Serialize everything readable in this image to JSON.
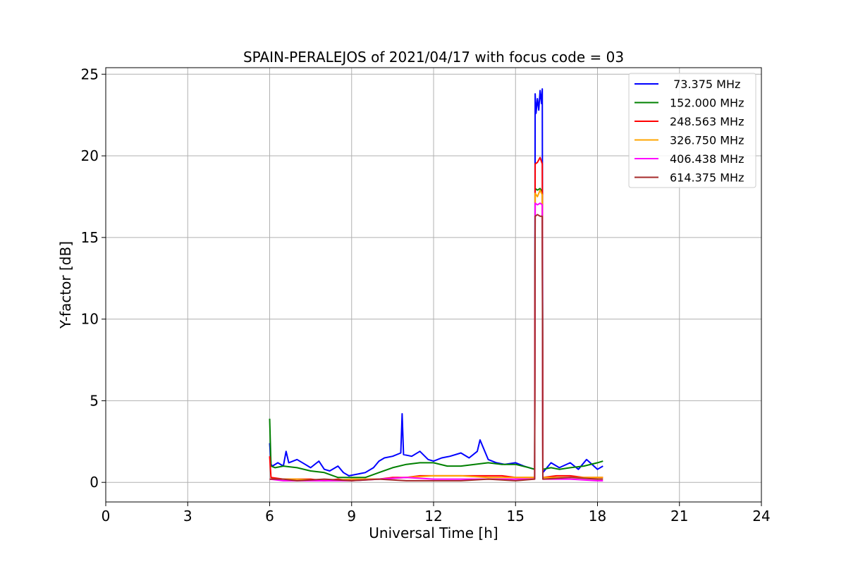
{
  "chart_data": {
    "type": "line",
    "title": "SPAIN-PERALEJOS of 2021/04/17 with focus code = 03",
    "xlabel": "Universal Time [h]",
    "ylabel": "Y-factor [dB]",
    "xlim": [
      0,
      24
    ],
    "ylim": [
      -1.2,
      25.4
    ],
    "xticks": [
      0,
      3,
      6,
      9,
      12,
      15,
      18,
      21,
      24
    ],
    "xtick_labels": [
      "0",
      "3",
      "6",
      "9",
      "12",
      "15",
      "18",
      "21",
      "24"
    ],
    "yticks": [
      0,
      5,
      10,
      15,
      20,
      25
    ],
    "ytick_labels": [
      "0",
      "5",
      "10",
      "15",
      "20",
      "25"
    ],
    "grid": true,
    "legend_position": "top-right",
    "series": [
      {
        "name": " 73.375 MHz",
        "color": "#0000ff",
        "x": [
          6.0,
          6.05,
          6.1,
          6.3,
          6.5,
          6.6,
          6.7,
          7.0,
          7.3,
          7.5,
          7.8,
          8.0,
          8.2,
          8.5,
          8.7,
          8.9,
          9.2,
          9.5,
          9.8,
          10.0,
          10.2,
          10.5,
          10.8,
          10.85,
          10.9,
          11.2,
          11.5,
          11.8,
          12.0,
          12.3,
          12.6,
          13.0,
          13.3,
          13.6,
          13.7,
          14.0,
          14.3,
          14.6,
          15.0,
          15.3,
          15.5,
          15.7,
          15.72,
          15.75,
          15.8,
          15.85,
          15.9,
          15.95,
          15.98,
          16.0,
          16.3,
          16.6,
          17.0,
          17.3,
          17.6,
          18.0,
          18.2
        ],
        "y": [
          2.4,
          1.1,
          1.0,
          1.2,
          1.0,
          1.9,
          1.2,
          1.4,
          1.1,
          0.9,
          1.3,
          0.8,
          0.7,
          1.0,
          0.6,
          0.4,
          0.5,
          0.6,
          0.9,
          1.3,
          1.5,
          1.6,
          1.8,
          4.2,
          1.7,
          1.6,
          1.9,
          1.4,
          1.3,
          1.5,
          1.6,
          1.8,
          1.5,
          1.9,
          2.6,
          1.4,
          1.2,
          1.1,
          1.2,
          1.0,
          0.9,
          0.8,
          23.8,
          22.6,
          23.5,
          22.8,
          24.0,
          23.2,
          24.1,
          0.6,
          1.2,
          0.9,
          1.2,
          0.8,
          1.4,
          0.8,
          1.0
        ]
      },
      {
        "name": "152.000 MHz",
        "color": "#008000",
        "x": [
          6.0,
          6.05,
          6.2,
          6.5,
          7.0,
          7.5,
          8.0,
          8.5,
          9.0,
          9.5,
          10.0,
          10.5,
          11.0,
          11.5,
          12.0,
          12.5,
          13.0,
          13.5,
          14.0,
          14.5,
          15.0,
          15.5,
          15.7,
          15.72,
          15.8,
          15.9,
          15.98,
          16.0,
          16.3,
          16.6,
          17.0,
          17.5,
          18.0,
          18.2
        ],
        "y": [
          3.9,
          1.0,
          0.9,
          1.0,
          0.9,
          0.7,
          0.6,
          0.3,
          0.3,
          0.3,
          0.6,
          0.9,
          1.1,
          1.2,
          1.2,
          1.0,
          1.0,
          1.1,
          1.2,
          1.1,
          1.1,
          0.9,
          0.8,
          18.0,
          17.9,
          18.0,
          17.8,
          0.8,
          0.9,
          0.8,
          0.9,
          1.0,
          1.2,
          1.3
        ]
      },
      {
        "name": "248.563 MHz",
        "color": "#ff0000",
        "x": [
          6.0,
          6.05,
          6.5,
          7.0,
          7.5,
          8.0,
          8.5,
          9.0,
          9.5,
          10.0,
          10.5,
          11.0,
          11.5,
          12.0,
          12.5,
          13.0,
          13.5,
          14.0,
          14.5,
          15.0,
          15.5,
          15.7,
          15.72,
          15.8,
          15.9,
          15.98,
          16.0,
          16.5,
          17.0,
          17.5,
          18.0,
          18.2
        ],
        "y": [
          1.6,
          0.3,
          0.2,
          0.2,
          0.2,
          0.1,
          0.2,
          0.1,
          0.2,
          0.2,
          0.3,
          0.3,
          0.4,
          0.4,
          0.4,
          0.4,
          0.4,
          0.4,
          0.4,
          0.3,
          0.3,
          0.3,
          19.5,
          19.6,
          19.9,
          19.5,
          0.3,
          0.4,
          0.4,
          0.3,
          0.3,
          0.3
        ]
      },
      {
        "name": "326.750 MHz",
        "color": "#ffa500",
        "x": [
          6.0,
          6.5,
          7.0,
          8.0,
          9.0,
          10.0,
          11.0,
          12.0,
          13.0,
          14.0,
          15.0,
          15.7,
          15.72,
          15.8,
          15.9,
          15.98,
          16.0,
          17.0,
          18.0,
          18.2
        ],
        "y": [
          0.2,
          0.2,
          0.2,
          0.1,
          0.2,
          0.2,
          0.3,
          0.4,
          0.4,
          0.3,
          0.3,
          0.3,
          17.7,
          17.5,
          17.9,
          17.6,
          0.3,
          0.3,
          0.3,
          0.3
        ]
      },
      {
        "name": "406.438 MHz",
        "color": "#ff00ff",
        "x": [
          6.0,
          6.5,
          7.0,
          8.0,
          9.0,
          10.0,
          11.0,
          12.0,
          13.0,
          14.0,
          15.0,
          15.7,
          15.72,
          15.8,
          15.9,
          15.98,
          16.0,
          17.0,
          18.0,
          18.2
        ],
        "y": [
          0.2,
          0.1,
          0.1,
          0.1,
          0.1,
          0.2,
          0.3,
          0.2,
          0.2,
          0.2,
          0.2,
          0.2,
          17.1,
          17.0,
          17.1,
          17.0,
          0.2,
          0.2,
          0.1,
          0.1
        ]
      },
      {
        "name": "614.375 MHz",
        "color": "#a52a2a",
        "x": [
          6.0,
          6.5,
          7.0,
          8.0,
          9.0,
          10.0,
          11.0,
          12.0,
          13.0,
          14.0,
          15.0,
          15.7,
          15.72,
          15.8,
          15.9,
          15.98,
          16.0,
          17.0,
          18.0,
          18.2
        ],
        "y": [
          0.2,
          0.2,
          0.1,
          0.2,
          0.1,
          0.2,
          0.1,
          0.1,
          0.1,
          0.2,
          0.1,
          0.2,
          16.3,
          16.4,
          16.3,
          16.3,
          0.2,
          0.3,
          0.2,
          0.2
        ]
      }
    ]
  }
}
